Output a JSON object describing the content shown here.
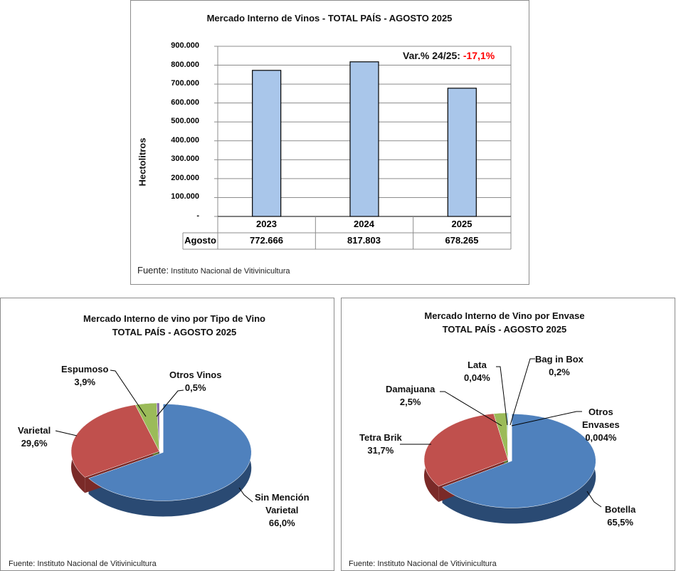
{
  "chart_data": [
    {
      "type": "bar",
      "title": "Mercado Interno de Vinos  - TOTAL PAÍS  - AGOSTO 2025",
      "ylabel": "Hectolitros",
      "xlabel": "",
      "categories": [
        "2023",
        "2024",
        "2025"
      ],
      "series": [
        {
          "name": "Agosto",
          "values": [
            772666,
            817803,
            678265
          ]
        }
      ],
      "value_labels": [
        "772.666",
        "817.803",
        "678.265"
      ],
      "yticks": [
        "-",
        "100.000",
        "200.000",
        "300.000",
        "400.000",
        "500.000",
        "600.000",
        "700.000",
        "800.000",
        "900.000"
      ],
      "ylim": [
        0,
        900000
      ],
      "grid": true,
      "annotation_label": "Var.% 24/25:",
      "annotation_value": "-17,1%",
      "annotation_color": "#ff0000",
      "bar_color": "#a9c6ea",
      "source_prefix": "Fuente:",
      "source": "Instituto Nacional de Vitivinicultura"
    },
    {
      "type": "pie",
      "title": "Mercado Interno de vino por Tipo de Vino",
      "subtitle": "TOTAL PAÍS - AGOSTO 2025",
      "slices": [
        {
          "name": "Sin Mención Varietal",
          "name1": "Sin Mención",
          "name2": "Varietal",
          "value": 66.0,
          "label": "66,0%",
          "color": "#4f81bd",
          "side": "#2a4a73"
        },
        {
          "name": "Varietal",
          "value": 29.6,
          "label": "29,6%",
          "color": "#c0504d",
          "side": "#7a2a28"
        },
        {
          "name": "Espumoso",
          "value": 3.9,
          "label": "3,9%",
          "color": "#9bbb59",
          "side": "#5d7530"
        },
        {
          "name": "Otros Vinos",
          "value": 0.5,
          "label": "0,5%",
          "color": "#8064a2",
          "side": "#4e3a66"
        }
      ],
      "source": "Fuente: Instituto Nacional de Vitivinicultura"
    },
    {
      "type": "pie",
      "title": "Mercado Interno de Vino por Envase",
      "subtitle": "TOTAL PAÍS - AGOSTO 2025",
      "slices": [
        {
          "name": "Botella",
          "value": 65.5,
          "label": "65,5%",
          "color": "#4f81bd",
          "side": "#2a4a73"
        },
        {
          "name": "Tetra Brik",
          "value": 31.7,
          "label": "31,7%",
          "color": "#c0504d",
          "side": "#7a2a28"
        },
        {
          "name": "Damajuana",
          "value": 2.5,
          "label": "2,5%",
          "color": "#9bbb59",
          "side": "#5d7530"
        },
        {
          "name": "Lata",
          "value": 0.04,
          "label": "0,04%",
          "color": "#8064a2",
          "side": "#4e3a66"
        },
        {
          "name": "Bag in Box",
          "value": 0.2,
          "label": "0,2%",
          "color": "#4bacc6",
          "side": "#2a6a7a"
        },
        {
          "name": "Otros Envases",
          "name1": "Otros",
          "name2": "Envases",
          "value": 0.004,
          "label": "0,004%",
          "color": "#f79646",
          "side": "#9a5a20"
        }
      ],
      "source": "Fuente: Instituto Nacional de Vitivinicultura"
    }
  ]
}
